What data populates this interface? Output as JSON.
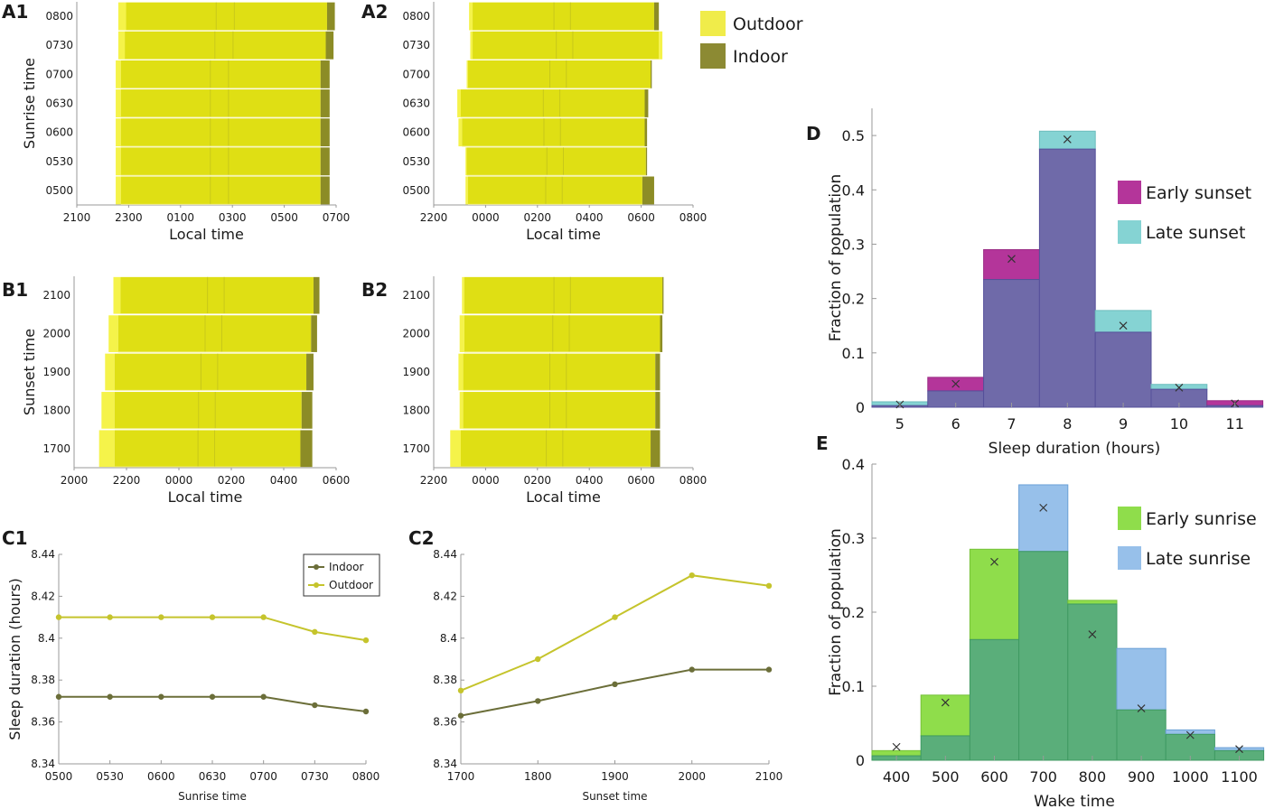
{
  "panel_labels": {
    "A1": "A1",
    "A2": "A2",
    "B1": "B1",
    "B2": "B2",
    "C1": "C1",
    "C2": "C2",
    "D": "D",
    "E": "E"
  },
  "colors": {
    "outdoor": "#dfdf14",
    "outdoor_edge": "#f5f34a",
    "indoor": "#8c8c26",
    "indoor_line": "#6b6e39",
    "outdoor_line": "#c5c42c",
    "early_sunset": "#b4359a",
    "late_sunset": "#85d3d3",
    "overlap_D": "#6f6aa9",
    "early_sunrise": "#8fdd4b",
    "late_sunrise": "#97c0ea",
    "overlap_E": "#5aae7a"
  },
  "legend_AB": {
    "outdoor": "Outdoor",
    "indoor": "Indoor"
  },
  "chart_data": [
    {
      "id": "A1",
      "type": "bar",
      "ylabel": "Sunrise time",
      "xlabel": "Local time",
      "categories": [
        "0800",
        "0730",
        "0700",
        "0630",
        "0600",
        "0530",
        "0500"
      ],
      "xticks": [
        "2100",
        "2300",
        "0100",
        "0300",
        "0500",
        "0700"
      ],
      "xlim": [
        21,
        31
      ],
      "series": [
        {
          "name": "Outdoor",
          "onset": [
            22.6,
            22.6,
            22.5,
            22.5,
            22.5,
            22.5,
            22.5
          ],
          "offset": [
            30.65,
            30.6,
            30.4,
            30.4,
            30.4,
            30.4,
            30.4
          ]
        },
        {
          "name": "Indoor",
          "onset": [
            22.9,
            22.85,
            22.7,
            22.7,
            22.7,
            22.7,
            22.7
          ],
          "offset": [
            30.95,
            30.9,
            30.75,
            30.75,
            30.75,
            30.75,
            30.75
          ]
        }
      ]
    },
    {
      "id": "A2",
      "type": "bar",
      "categories": [
        "0800",
        "0730",
        "0700",
        "0630",
        "0600",
        "0530",
        "0500"
      ],
      "xticks": [
        "2200",
        "0000",
        "0200",
        "0400",
        "0600",
        "0800"
      ],
      "xlim": [
        22,
        33
      ],
      "xlabel": "Local time",
      "series": [
        {
          "name": "Outdoor",
          "onset": [
            23.5,
            23.55,
            23.4,
            23.0,
            23.05,
            23.35,
            23.35
          ],
          "offset": [
            31.35,
            31.7,
            31.2,
            30.95,
            30.95,
            31.0,
            30.85
          ]
        },
        {
          "name": "Indoor",
          "onset": [
            23.65,
            23.65,
            23.45,
            23.15,
            23.2,
            23.4,
            23.45
          ],
          "offset": [
            31.55,
            31.55,
            31.25,
            31.1,
            31.05,
            31.05,
            31.35
          ]
        }
      ]
    },
    {
      "id": "B1",
      "type": "bar",
      "ylabel": "Sunset time",
      "xlabel": "Local time",
      "categories": [
        "2100",
        "2000",
        "1900",
        "1800",
        "1700"
      ],
      "xticks": [
        "2000",
        "2200",
        "0000",
        "0200",
        "0400",
        "0600"
      ],
      "xlim": [
        20,
        31
      ],
      "series": [
        {
          "name": "Outdoor",
          "onset": [
            21.65,
            21.45,
            21.3,
            21.15,
            21.05
          ],
          "offset": [
            30.05,
            29.95,
            29.75,
            29.55,
            29.5
          ]
        },
        {
          "name": "Indoor",
          "onset": [
            21.95,
            21.85,
            21.7,
            21.7,
            21.7
          ],
          "offset": [
            30.3,
            30.2,
            30.05,
            30.0,
            30.0
          ]
        }
      ]
    },
    {
      "id": "B2",
      "type": "bar",
      "categories": [
        "2100",
        "2000",
        "1900",
        "1800",
        "1700"
      ],
      "xticks": [
        "2200",
        "0000",
        "0200",
        "0400",
        "0600",
        "0800"
      ],
      "xlim": [
        22,
        33
      ],
      "xlabel": "Local time",
      "series": [
        {
          "name": "Outdoor",
          "onset": [
            23.2,
            23.1,
            23.05,
            23.1,
            22.7
          ],
          "offset": [
            31.7,
            31.6,
            31.4,
            31.4,
            31.2
          ]
        },
        {
          "name": "Indoor",
          "onset": [
            23.3,
            23.3,
            23.25,
            23.25,
            23.15
          ],
          "offset": [
            31.75,
            31.7,
            31.6,
            31.6,
            31.6
          ]
        }
      ]
    },
    {
      "id": "C1",
      "type": "line",
      "xlabel": "Sunrise time",
      "ylabel": "Sleep duration (hours)",
      "categories": [
        "0500",
        "0530",
        "0600",
        "0630",
        "0700",
        "0730",
        "0800"
      ],
      "ylim": [
        8.34,
        8.44
      ],
      "yticks": [
        "8.34",
        "8.36",
        "8.38",
        "8.4",
        "8.42",
        "8.44"
      ],
      "legend": "top-right",
      "series": [
        {
          "name": "Indoor",
          "values": [
            8.372,
            8.372,
            8.372,
            8.372,
            8.372,
            8.368,
            8.365
          ]
        },
        {
          "name": "Outdoor",
          "values": [
            8.41,
            8.41,
            8.41,
            8.41,
            8.41,
            8.403,
            8.399
          ]
        }
      ]
    },
    {
      "id": "C2",
      "type": "line",
      "xlabel": "Sunset time",
      "categories": [
        "1700",
        "1800",
        "1900",
        "2000",
        "2100"
      ],
      "ylim": [
        8.34,
        8.44
      ],
      "yticks": [
        "8.34",
        "8.36",
        "8.38",
        "8.4",
        "8.42",
        "8.44"
      ],
      "series": [
        {
          "name": "Indoor",
          "values": [
            8.363,
            8.37,
            8.378,
            8.385,
            8.385
          ]
        },
        {
          "name": "Outdoor",
          "values": [
            8.375,
            8.39,
            8.41,
            8.43,
            8.425
          ]
        }
      ]
    },
    {
      "id": "D",
      "type": "bar",
      "xlabel": "Sleep duration (hours)",
      "ylabel": "Fraction of population",
      "categories": [
        "5",
        "6",
        "7",
        "8",
        "9",
        "10",
        "11"
      ],
      "ylim": [
        0,
        0.55
      ],
      "yticks": [
        "0",
        "0.1",
        "0.2",
        "0.3",
        "0.4",
        "0.5"
      ],
      "legend": "top-right",
      "series": [
        {
          "name": "Early sunset",
          "values": [
            0.003,
            0.055,
            0.29,
            0.475,
            0.138,
            0.033,
            0.012
          ]
        },
        {
          "name": "Late sunset",
          "values": [
            0.01,
            0.03,
            0.235,
            0.508,
            0.178,
            0.042,
            0.003
          ]
        }
      ],
      "markers": [
        0.005,
        0.043,
        0.273,
        0.493,
        0.15,
        0.036,
        0.007
      ]
    },
    {
      "id": "E",
      "type": "bar",
      "xlabel": "Wake time",
      "ylabel": "Fraction of population",
      "categories": [
        "400",
        "500",
        "600",
        "700",
        "800",
        "900",
        "1000",
        "1100"
      ],
      "ylim": [
        0,
        0.4
      ],
      "yticks": [
        "0",
        "0.1",
        "0.2",
        "0.3",
        "0.4"
      ],
      "legend": "top-right",
      "series": [
        {
          "name": "Early sunrise",
          "values": [
            0.013,
            0.088,
            0.285,
            0.282,
            0.216,
            0.068,
            0.035,
            0.013
          ]
        },
        {
          "name": "Late sunrise",
          "values": [
            0.006,
            0.033,
            0.163,
            0.372,
            0.211,
            0.151,
            0.041,
            0.017
          ]
        }
      ],
      "markers": [
        0.018,
        0.078,
        0.268,
        0.341,
        0.17,
        0.07,
        0.034,
        0.015
      ]
    }
  ]
}
